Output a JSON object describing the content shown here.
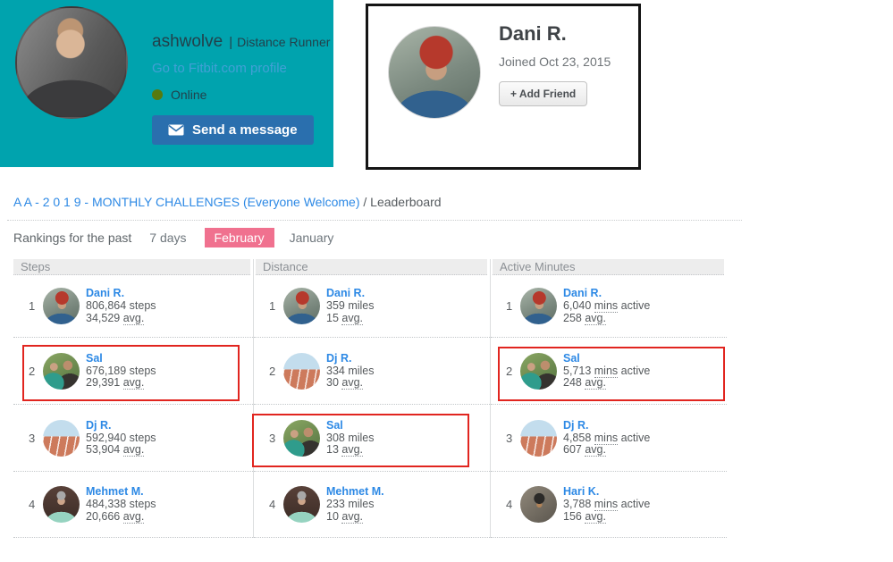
{
  "colors": {
    "banner_teal": "#00a3ae",
    "message_button_blue": "#2a6fae",
    "link_blue": "#2d89e5",
    "selected_month_pink": "#f0718f",
    "online_green": "#567a0e",
    "highlight_red": "#e1251f"
  },
  "profile_banner": {
    "username": "ashwolve",
    "separator": "|",
    "title": "Distance Runner",
    "profile_link": "Go to Fitbit.com profile",
    "status": "Online",
    "send_message": "Send a message",
    "avatar": "ashwolve-avatar"
  },
  "member_card": {
    "name": "Dani R.",
    "joined": "Joined Oct 23, 2015",
    "add_friend_icon": "+",
    "add_friend": "Add Friend",
    "avatar": "dani-avatar"
  },
  "breadcrumb": {
    "group_link": "A A - 2 0 1 9 - MONTHLY CHALLENGES (Everyone Welcome)",
    "separator": "/",
    "current": "Leaderboard"
  },
  "rankings_bar": {
    "label": "Rankings for the past",
    "periods": [
      {
        "label": "7 days",
        "selected": false
      },
      {
        "label": "February",
        "selected": true
      },
      {
        "label": "January",
        "selected": false
      }
    ]
  },
  "leaderboard": {
    "columns": [
      {
        "header": "Steps",
        "rows": [
          {
            "rank": "1",
            "name": "Dani R.",
            "avatar": "dani-avatar",
            "value_num": "806,864",
            "value_abbr": "",
            "value_rest": "steps",
            "avg_num": "34,529",
            "avg_abbr": "avg."
          },
          {
            "rank": "2",
            "name": "Sal",
            "avatar": "sal-avatar",
            "value_num": "676,189",
            "value_abbr": "",
            "value_rest": "steps",
            "avg_num": "29,391",
            "avg_abbr": "avg."
          },
          {
            "rank": "3",
            "name": "Dj R.",
            "avatar": "dj-avatar",
            "value_num": "592,940",
            "value_abbr": "",
            "value_rest": "steps",
            "avg_num": "53,904",
            "avg_abbr": "avg."
          },
          {
            "rank": "4",
            "name": "Mehmet M.",
            "avatar": "mehmet-avatar",
            "value_num": "484,338",
            "value_abbr": "",
            "value_rest": "steps",
            "avg_num": "20,666",
            "avg_abbr": "avg."
          }
        ]
      },
      {
        "header": "Distance",
        "rows": [
          {
            "rank": "1",
            "name": "Dani R.",
            "avatar": "dani-avatar",
            "value_num": "359",
            "value_abbr": "",
            "value_rest": "miles",
            "avg_num": "15",
            "avg_abbr": "avg."
          },
          {
            "rank": "2",
            "name": "Dj R.",
            "avatar": "dj-avatar",
            "value_num": "334",
            "value_abbr": "",
            "value_rest": "miles",
            "avg_num": "30",
            "avg_abbr": "avg."
          },
          {
            "rank": "3",
            "name": "Sal",
            "avatar": "sal-avatar",
            "value_num": "308",
            "value_abbr": "",
            "value_rest": "miles",
            "avg_num": "13",
            "avg_abbr": "avg."
          },
          {
            "rank": "4",
            "name": "Mehmet M.",
            "avatar": "mehmet-avatar",
            "value_num": "233",
            "value_abbr": "",
            "value_rest": "miles",
            "avg_num": "10",
            "avg_abbr": "avg."
          }
        ]
      },
      {
        "header": "Active Minutes",
        "rows": [
          {
            "rank": "1",
            "name": "Dani R.",
            "avatar": "dani-avatar",
            "value_num": "6,040",
            "value_abbr": "mins",
            "value_rest": "active",
            "avg_num": "258",
            "avg_abbr": "avg."
          },
          {
            "rank": "2",
            "name": "Sal",
            "avatar": "sal-avatar",
            "value_num": "5,713",
            "value_abbr": "mins",
            "value_rest": "active",
            "avg_num": "248",
            "avg_abbr": "avg."
          },
          {
            "rank": "3",
            "name": "Dj R.",
            "avatar": "dj-avatar",
            "value_num": "4,858",
            "value_abbr": "mins",
            "value_rest": "active",
            "avg_num": "607",
            "avg_abbr": "avg."
          },
          {
            "rank": "4",
            "name": "Hari K.",
            "avatar": "hari-avatar",
            "value_num": "3,788",
            "value_abbr": "mins",
            "value_rest": "active",
            "avg_num": "156",
            "avg_abbr": "avg."
          }
        ]
      }
    ]
  },
  "annotations": [
    {
      "target": "steps-row-2",
      "type": "red-box"
    },
    {
      "target": "distance-row-3",
      "type": "red-box"
    },
    {
      "target": "active-minutes-row-2",
      "type": "red-box"
    }
  ]
}
